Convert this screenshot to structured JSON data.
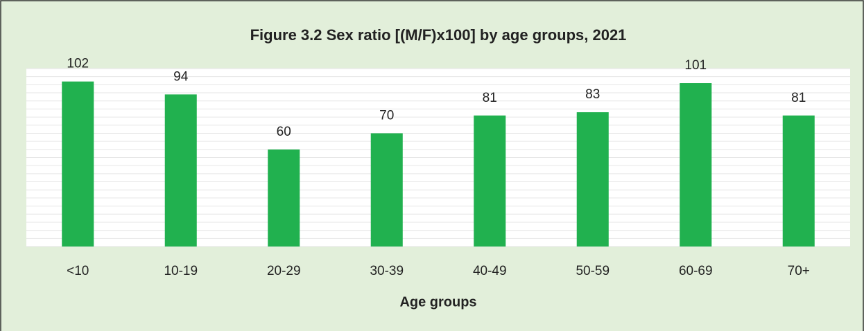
{
  "chart_data": {
    "type": "bar",
    "title": "Figure 3.2 Sex ratio [(M/F)x100] by age groups, 2021",
    "x_label": "Age groups",
    "categories": [
      "<10",
      "10-19",
      "20-29",
      "30-39",
      "40-49",
      "50-59",
      "60-69",
      "70+"
    ],
    "values": [
      102,
      94,
      60,
      70,
      81,
      83,
      101,
      81
    ],
    "color": "#21b14f",
    "ylim": [
      0,
      110
    ],
    "yticks": [
      0,
      5,
      10,
      15,
      20,
      25,
      30,
      35,
      40,
      45,
      50,
      55,
      60,
      65,
      70,
      75,
      80,
      85,
      90,
      95,
      100,
      105,
      110
    ],
    "grid": true
  }
}
